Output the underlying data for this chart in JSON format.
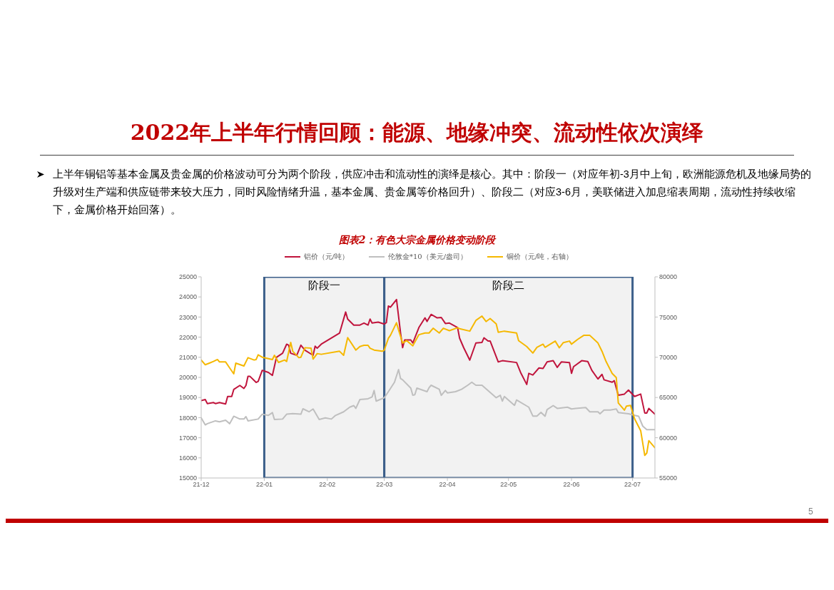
{
  "chart_data": {
    "type": "line",
    "title": "2022年上半年行情回顾：能源、地缘冲突、流动性依次演绎",
    "subtitle": "图表2：有色大宗金属价格变动阶段",
    "annotations": [
      "上半年铜铝等基本金属及贵金属的价格波动可分为两个阶段，供应冲击和流动性的演绎是核心。其中：阶段一（对应年初-3月中上旬，欧洲能源危机及地缘局势的升级对生产端和供应链带来较大压力，同时风险情绪升温，基本金属、贵金属等价格回升）、阶段二（对应3-6月，美联储进入加息缩表周期，流动性持续收缩下，金属价格开始回落）。",
      "5"
    ],
    "legend": "top",
    "xlim": [
      "2021-12-01",
      "2022-07-12"
    ],
    "xticks": [
      {
        "value": "2021-12",
        "label": "21-12"
      },
      {
        "value": "2022-01",
        "label": "22-01"
      },
      {
        "value": "2022-02",
        "label": "22-02"
      },
      {
        "value": "2022-03",
        "label": "22-03"
      },
      {
        "value": "2022-04",
        "label": "22-04"
      },
      {
        "value": "2022-05",
        "label": "22-05"
      },
      {
        "value": "2022-06",
        "label": "22-06"
      },
      {
        "value": "2022-07",
        "label": "22-07"
      }
    ],
    "ylim": [
      15000,
      25000
    ],
    "yticks": [
      15000,
      16000,
      17000,
      18000,
      19000,
      20000,
      21000,
      22000,
      23000,
      24000,
      25000
    ],
    "y2lim": [
      55000,
      80000
    ],
    "y2ticks": [
      55000,
      60000,
      65000,
      70000,
      75000,
      80000
    ],
    "bands": [
      {
        "axis": "x",
        "from": "2022-01",
        "to": "2022-03",
        "label": "阶段一",
        "color": "#f2f2f2"
      },
      {
        "axis": "x",
        "from": "2022-03",
        "to": "2022-07",
        "label": "阶段二",
        "color": "#f2f2f2"
      }
    ],
    "series": [
      {
        "name": "铝价（元/吨）",
        "color": "#c0143c",
        "x": [
          "2021-12-01",
          "2021-12-03",
          "2021-12-04",
          "2021-12-07",
          "2021-12-08",
          "2021-12-10",
          "2021-12-13",
          "2021-12-14",
          "2021-12-16",
          "2021-12-17",
          "2021-12-20",
          "2021-12-22",
          "2021-12-23",
          "2021-12-24",
          "2021-12-25",
          "2021-12-28",
          "2021-12-29",
          "2021-12-31",
          "2022-01-03",
          "2022-01-05",
          "2022-01-07",
          "2022-01-10",
          "2022-01-12",
          "2022-01-13",
          "2022-01-14",
          "2022-01-17",
          "2022-01-19",
          "2022-01-21",
          "2022-01-25",
          "2022-01-26",
          "2022-01-27",
          "2022-01-29",
          "2022-02-07",
          "2022-02-10",
          "2022-02-11",
          "2022-02-14",
          "2022-02-17",
          "2022-02-19",
          "2022-02-21",
          "2022-02-22",
          "2022-02-23",
          "2022-02-26",
          "2022-03-01",
          "2022-03-02",
          "2022-03-03",
          "2022-03-04",
          "2022-03-07",
          "2022-03-09",
          "2022-03-10",
          "2022-03-11",
          "2022-03-14",
          "2022-03-15",
          "2022-03-18",
          "2022-03-21",
          "2022-03-22",
          "2022-03-24",
          "2022-03-27",
          "2022-03-29",
          "2022-03-31",
          "2022-04-02",
          "2022-04-06",
          "2022-04-07",
          "2022-04-09",
          "2022-04-12",
          "2022-04-15",
          "2022-04-18",
          "2022-04-19",
          "2022-04-21",
          "2022-04-22",
          "2022-04-26",
          "2022-04-28",
          "2022-05-05",
          "2022-05-07",
          "2022-05-10",
          "2022-05-11",
          "2022-05-13",
          "2022-05-16",
          "2022-05-18",
          "2022-05-20",
          "2022-05-23",
          "2022-05-25",
          "2022-05-27",
          "2022-05-31",
          "2022-06-01",
          "2022-06-02",
          "2022-06-06",
          "2022-06-09",
          "2022-06-11",
          "2022-06-14",
          "2022-06-16",
          "2022-06-17",
          "2022-06-21",
          "2022-06-22",
          "2022-06-24",
          "2022-06-27",
          "2022-06-29",
          "2022-07-02",
          "2022-07-05",
          "2022-07-07",
          "2022-07-08",
          "2022-07-09",
          "2022-07-12"
        ],
        "values": [
          18850,
          18900,
          18700,
          18750,
          18700,
          18750,
          18680,
          19050,
          19050,
          19400,
          19600,
          19450,
          19600,
          20050,
          20050,
          19750,
          19800,
          20350,
          20250,
          20100,
          21000,
          21200,
          21650,
          21600,
          21200,
          21100,
          21600,
          21350,
          21100,
          21550,
          21450,
          21650,
          22200,
          23250,
          22900,
          22600,
          22600,
          22700,
          22600,
          22900,
          22700,
          22750,
          22650,
          22720,
          23550,
          23490,
          23870,
          22190,
          21480,
          21860,
          21860,
          21710,
          22480,
          22960,
          22780,
          23130,
          22960,
          22980,
          22680,
          22700,
          22480,
          21950,
          21480,
          20860,
          21710,
          21740,
          21970,
          21810,
          21810,
          20770,
          20830,
          20740,
          20240,
          19650,
          20200,
          20120,
          20470,
          20440,
          20770,
          20830,
          20500,
          20770,
          20740,
          20200,
          20530,
          20830,
          20790,
          20350,
          19920,
          20150,
          19880,
          19760,
          19840,
          19110,
          19170,
          19370,
          19050,
          19170,
          18230,
          18230,
          18460,
          18170
        ]
      },
      {
        "name": "伦敦金*10（美元/盎司）",
        "color": "#bfbfbf",
        "x": [
          "2021-12-01",
          "2021-12-03",
          "2021-12-04",
          "2021-12-08",
          "2021-12-10",
          "2021-12-13",
          "2021-12-15",
          "2021-12-17",
          "2021-12-20",
          "2021-12-22",
          "2021-12-23",
          "2021-12-24",
          "2021-12-29",
          "2021-12-31",
          "2022-01-03",
          "2022-01-05",
          "2022-01-06",
          "2022-01-10",
          "2022-01-12",
          "2022-01-15",
          "2022-01-19",
          "2022-01-20",
          "2022-01-23",
          "2022-01-25",
          "2022-01-28",
          "2022-01-31",
          "2022-02-03",
          "2022-02-05",
          "2022-02-09",
          "2022-02-12",
          "2022-02-14",
          "2022-02-15",
          "2022-02-17",
          "2022-02-21",
          "2022-02-23",
          "2022-02-24",
          "2022-02-25",
          "2022-03-01",
          "2022-03-03",
          "2022-03-06",
          "2022-03-08",
          "2022-03-09",
          "2022-03-10",
          "2022-03-14",
          "2022-03-15",
          "2022-03-16",
          "2022-03-17",
          "2022-03-22",
          "2022-03-23",
          "2022-03-24",
          "2022-03-28",
          "2022-03-29",
          "2022-03-31",
          "2022-04-01",
          "2022-04-05",
          "2022-04-08",
          "2022-04-11",
          "2022-04-13",
          "2022-04-15",
          "2022-04-18",
          "2022-04-23",
          "2022-04-25",
          "2022-04-27",
          "2022-04-28",
          "2022-04-29",
          "2022-05-04",
          "2022-05-05",
          "2022-05-11",
          "2022-05-13",
          "2022-05-15",
          "2022-05-17",
          "2022-05-19",
          "2022-05-20",
          "2022-05-23",
          "2022-05-25",
          "2022-05-30",
          "2022-06-01",
          "2022-06-03",
          "2022-06-08",
          "2022-06-10",
          "2022-06-14",
          "2022-06-15",
          "2022-06-17",
          "2022-06-20",
          "2022-06-23",
          "2022-06-24",
          "2022-06-29",
          "2022-07-04",
          "2022-07-06",
          "2022-07-08",
          "2022-07-12"
        ],
        "values": [
          17990,
          17640,
          17700,
          17840,
          17790,
          17870,
          17700,
          18070,
          17930,
          17930,
          18050,
          17840,
          17930,
          18170,
          18110,
          18250,
          17910,
          17930,
          18170,
          18200,
          18170,
          18440,
          18290,
          18430,
          17910,
          17990,
          17930,
          18110,
          18290,
          18520,
          18600,
          18460,
          18900,
          18940,
          19030,
          19350,
          18820,
          18990,
          19290,
          19760,
          20390,
          19940,
          19880,
          19470,
          19110,
          19140,
          19470,
          19290,
          19490,
          19610,
          19410,
          19110,
          19350,
          19230,
          19290,
          19410,
          19610,
          19760,
          19610,
          19610,
          19170,
          18990,
          19110,
          18820,
          19050,
          18610,
          18880,
          18520,
          18080,
          18080,
          18260,
          18070,
          18400,
          18600,
          18460,
          18520,
          18430,
          18460,
          18500,
          18290,
          18290,
          18190,
          18380,
          18380,
          18430,
          18250,
          18190,
          18070,
          17580,
          17400,
          17400
        ]
      },
      {
        "name": "铜价（元/吨，右轴）",
        "color": "#f5b800",
        "axis": "y2",
        "x": [
          "2021-12-01",
          "2021-12-03",
          "2021-12-05",
          "2021-12-07",
          "2021-12-09",
          "2021-12-10",
          "2021-12-13",
          "2021-12-15",
          "2021-12-17",
          "2021-12-18",
          "2021-12-22",
          "2021-12-24",
          "2021-12-27",
          "2021-12-28",
          "2021-12-29",
          "2021-12-31",
          "2022-01-05",
          "2022-01-06",
          "2022-01-08",
          "2022-01-11",
          "2022-01-12",
          "2022-01-14",
          "2022-01-15",
          "2022-01-18",
          "2022-01-19",
          "2022-01-21",
          "2022-01-24",
          "2022-01-25",
          "2022-01-27",
          "2022-01-29",
          "2022-02-07",
          "2022-02-09",
          "2022-02-11",
          "2022-02-15",
          "2022-02-17",
          "2022-02-19",
          "2022-02-21",
          "2022-02-22",
          "2022-02-24",
          "2022-02-28",
          "2022-03-01",
          "2022-03-03",
          "2022-03-04",
          "2022-03-07",
          "2022-03-08",
          "2022-03-10",
          "2022-03-12",
          "2022-03-15",
          "2022-03-18",
          "2022-03-21",
          "2022-03-23",
          "2022-03-25",
          "2022-03-28",
          "2022-03-30",
          "2022-04-02",
          "2022-04-06",
          "2022-04-07",
          "2022-04-12",
          "2022-04-15",
          "2022-04-18",
          "2022-04-20",
          "2022-04-22",
          "2022-04-25",
          "2022-04-26",
          "2022-04-29",
          "2022-05-05",
          "2022-05-06",
          "2022-05-10",
          "2022-05-13",
          "2022-05-15",
          "2022-05-18",
          "2022-05-19",
          "2022-05-24",
          "2022-05-26",
          "2022-05-28",
          "2022-05-31",
          "2022-06-01",
          "2022-06-04",
          "2022-06-07",
          "2022-06-10",
          "2022-06-14",
          "2022-06-16",
          "2022-06-18",
          "2022-06-21",
          "2022-06-23",
          "2022-06-24",
          "2022-06-27",
          "2022-06-28",
          "2022-06-30",
          "2022-07-02",
          "2022-07-05",
          "2022-07-07",
          "2022-07-08",
          "2022-07-09",
          "2022-07-12"
        ],
        "values": [
          69660,
          69070,
          69270,
          69480,
          69720,
          69420,
          69420,
          68680,
          67940,
          69270,
          68920,
          69950,
          69660,
          69720,
          70310,
          70010,
          69720,
          70250,
          69360,
          69660,
          69480,
          71840,
          70750,
          69950,
          70010,
          71190,
          71130,
          69780,
          70460,
          70370,
          70750,
          70250,
          72440,
          70900,
          71340,
          71490,
          71490,
          71130,
          70900,
          70750,
          70890,
          72370,
          72720,
          74290,
          73400,
          71770,
          72070,
          71420,
          72810,
          73020,
          73020,
          73610,
          73020,
          73610,
          73310,
          73670,
          73550,
          73250,
          74580,
          75120,
          74440,
          74820,
          74140,
          73110,
          73250,
          73020,
          72070,
          71330,
          70530,
          71240,
          71630,
          71240,
          72010,
          71180,
          71830,
          72010,
          71630,
          72220,
          72720,
          72720,
          71770,
          70740,
          69470,
          67990,
          67480,
          64320,
          63430,
          63930,
          64020,
          62360,
          60880,
          57810,
          58100,
          59640,
          58750
        ]
      }
    ]
  }
}
